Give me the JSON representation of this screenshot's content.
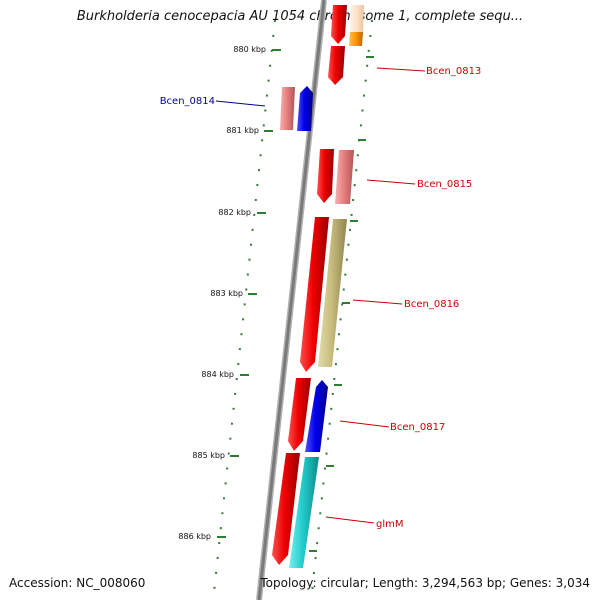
{
  "title": "Burkholderia cenocepacia AU 1054 chromosome 1, complete sequ...",
  "accession": "Accession: NC_008060",
  "topology": "Topology: circular; Length: 3,294,563 bp; Genes: 3,034",
  "ticks": [
    "880 kbp",
    "881 kbp",
    "882 kbp",
    "883 kbp",
    "884 kbp",
    "885 kbp",
    "886 kbp"
  ],
  "gene_labels": [
    {
      "text": "Bcen_0813",
      "color": "#cc0000"
    },
    {
      "text": "Bcen_0814",
      "color": "#000099"
    },
    {
      "text": "Bcen_0815",
      "color": "#cc0000"
    },
    {
      "text": "Bcen_0816",
      "color": "#cc0000"
    },
    {
      "text": "Bcen_0817",
      "color": "#cc0000"
    },
    {
      "text": "glmM",
      "color": "#cc0000"
    }
  ],
  "colors": {
    "backbone": "#8c8c8c",
    "tick": "#2e7d32",
    "gene_red": "#ee0000",
    "gene_pink": "#e98080",
    "gene_blue": "#0000ee",
    "gene_olive": "#c8bd7e",
    "gene_cyan": "#22cccc",
    "gene_orange": "#ff9900",
    "gene_peach": "#ffe0c4"
  }
}
